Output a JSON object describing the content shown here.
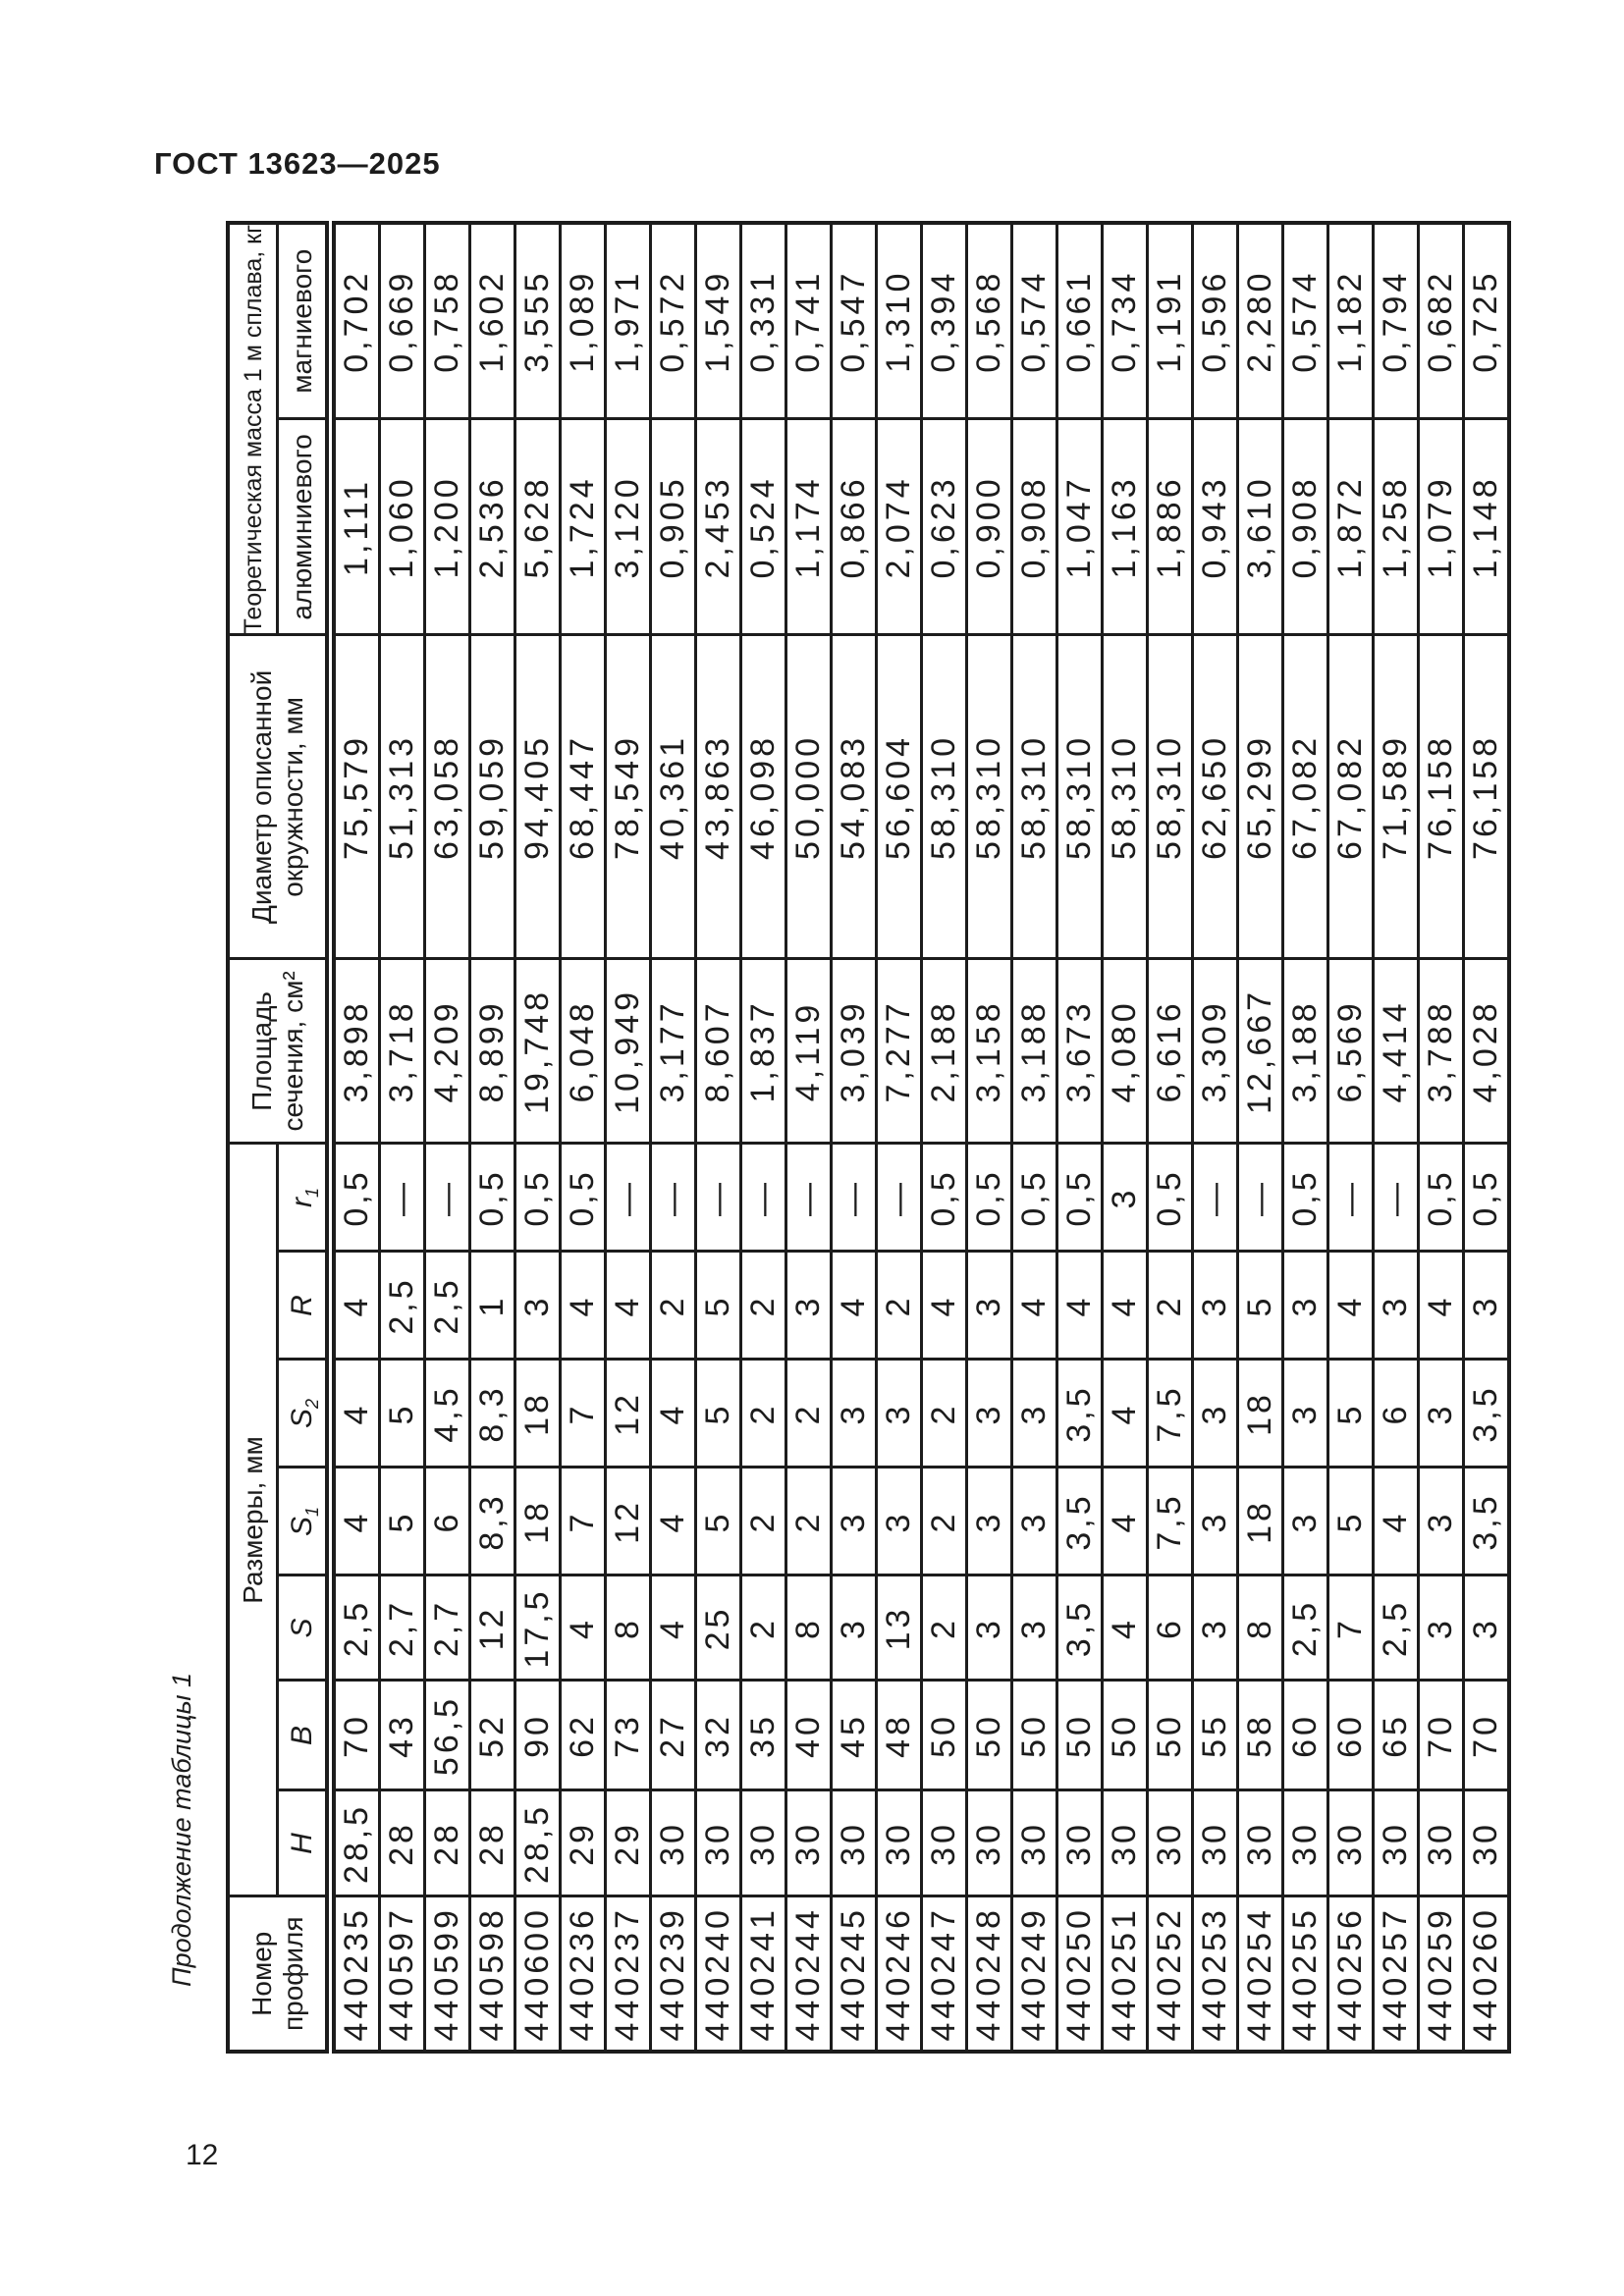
{
  "document": {
    "standard": "ГОСТ 13623—2025",
    "table_caption": "Продолжение таблицы 1",
    "page_number": "12"
  },
  "table": {
    "header": {
      "profile_lines": [
        "Номер",
        "профиля"
      ],
      "dimensions_group": "Размеры, мм",
      "dimension_cols": [
        "H",
        "B",
        "S",
        "S1",
        "S2",
        "R",
        "r1"
      ],
      "area_lines": [
        "Площадь",
        "сечения, см²"
      ],
      "diameter_lines": [
        "Диаметр описанной",
        "окружности, мм"
      ],
      "mass_group": "Теоретическая масса 1 м сплава, кг",
      "mass_cols": [
        "алюминиевого",
        "магниевого"
      ]
    },
    "columns_order": [
      "profile",
      "H",
      "B",
      "S",
      "S1",
      "S2",
      "R",
      "r1",
      "area_cm2",
      "diameter_mm",
      "mass_aluminum_kg",
      "mass_magnesium_kg"
    ],
    "rows": [
      [
        "440235",
        "28,5",
        "70",
        "2,5",
        "4",
        "4",
        "4",
        "0,5",
        "3,898",
        "75,579",
        "1,111",
        "0,702"
      ],
      [
        "440597",
        "28",
        "43",
        "2,7",
        "5",
        "5",
        "2,5",
        "—",
        "3,718",
        "51,313",
        "1,060",
        "0,669"
      ],
      [
        "440599",
        "28",
        "56,5",
        "2,7",
        "6",
        "4,5",
        "2,5",
        "—",
        "4,209",
        "63,058",
        "1,200",
        "0,758"
      ],
      [
        "440598",
        "28",
        "52",
        "12",
        "8,3",
        "8,3",
        "1",
        "0,5",
        "8,899",
        "59,059",
        "2,536",
        "1,602"
      ],
      [
        "440600",
        "28,5",
        "90",
        "17,5",
        "18",
        "18",
        "3",
        "0,5",
        "19,748",
        "94,405",
        "5,628",
        "3,555"
      ],
      [
        "440236",
        "29",
        "62",
        "4",
        "7",
        "7",
        "4",
        "0,5",
        "6,048",
        "68,447",
        "1,724",
        "1,089"
      ],
      [
        "440237",
        "29",
        "73",
        "8",
        "12",
        "12",
        "4",
        "—",
        "10,949",
        "78,549",
        "3,120",
        "1,971"
      ],
      [
        "440239",
        "30",
        "27",
        "4",
        "4",
        "4",
        "2",
        "—",
        "3,177",
        "40,361",
        "0,905",
        "0,572"
      ],
      [
        "440240",
        "30",
        "32",
        "25",
        "5",
        "5",
        "5",
        "—",
        "8,607",
        "43,863",
        "2,453",
        "1,549"
      ],
      [
        "440241",
        "30",
        "35",
        "2",
        "2",
        "2",
        "2",
        "—",
        "1,837",
        "46,098",
        "0,524",
        "0,331"
      ],
      [
        "440244",
        "30",
        "40",
        "8",
        "2",
        "2",
        "3",
        "—",
        "4,119",
        "50,000",
        "1,174",
        "0,741"
      ],
      [
        "440245",
        "30",
        "45",
        "3",
        "3",
        "3",
        "4",
        "—",
        "3,039",
        "54,083",
        "0,866",
        "0,547"
      ],
      [
        "440246",
        "30",
        "48",
        "13",
        "3",
        "3",
        "2",
        "—",
        "7,277",
        "56,604",
        "2,074",
        "1,310"
      ],
      [
        "440247",
        "30",
        "50",
        "2",
        "2",
        "2",
        "4",
        "0,5",
        "2,188",
        "58,310",
        "0,623",
        "0,394"
      ],
      [
        "440248",
        "30",
        "50",
        "3",
        "3",
        "3",
        "3",
        "0,5",
        "3,158",
        "58,310",
        "0,900",
        "0,568"
      ],
      [
        "440249",
        "30",
        "50",
        "3",
        "3",
        "3",
        "4",
        "0,5",
        "3,188",
        "58,310",
        "0,908",
        "0,574"
      ],
      [
        "440250",
        "30",
        "50",
        "3,5",
        "3,5",
        "3,5",
        "4",
        "0,5",
        "3,673",
        "58,310",
        "1,047",
        "0,661"
      ],
      [
        "440251",
        "30",
        "50",
        "4",
        "4",
        "4",
        "4",
        "3",
        "4,080",
        "58,310",
        "1,163",
        "0,734"
      ],
      [
        "440252",
        "30",
        "50",
        "6",
        "7,5",
        "7,5",
        "2",
        "0,5",
        "6,616",
        "58,310",
        "1,886",
        "1,191"
      ],
      [
        "440253",
        "30",
        "55",
        "3",
        "3",
        "3",
        "3",
        "—",
        "3,309",
        "62,650",
        "0,943",
        "0,596"
      ],
      [
        "440254",
        "30",
        "58",
        "8",
        "18",
        "18",
        "5",
        "—",
        "12,667",
        "65,299",
        "3,610",
        "2,280"
      ],
      [
        "440255",
        "30",
        "60",
        "2,5",
        "3",
        "3",
        "3",
        "0,5",
        "3,188",
        "67,082",
        "0,908",
        "0,574"
      ],
      [
        "440256",
        "30",
        "60",
        "7",
        "5",
        "5",
        "4",
        "—",
        "6,569",
        "67,082",
        "1,872",
        "1,182"
      ],
      [
        "440257",
        "30",
        "65",
        "2,5",
        "4",
        "6",
        "3",
        "—",
        "4,414",
        "71,589",
        "1,258",
        "0,794"
      ],
      [
        "440259",
        "30",
        "70",
        "3",
        "3",
        "3",
        "4",
        "0,5",
        "3,788",
        "76,158",
        "1,079",
        "0,682"
      ],
      [
        "440260",
        "30",
        "70",
        "3",
        "3,5",
        "3,5",
        "3",
        "0,5",
        "4,028",
        "76,158",
        "1,148",
        "0,725"
      ]
    ]
  }
}
